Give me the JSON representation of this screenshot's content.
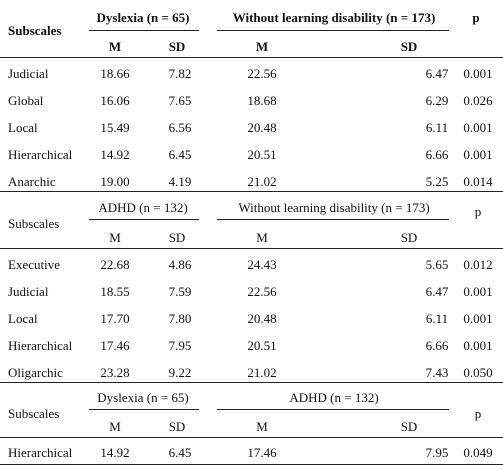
{
  "sections": [
    {
      "subscales_label": "Subscales",
      "group1": "Dyslexia (n = 65)",
      "group2": "Without learning disability (n = 173)",
      "p_label": "p",
      "m1": "M",
      "sd1": "SD",
      "m2": "M",
      "sd2": "SD",
      "rows": [
        {
          "label": "Judicial",
          "m1": "18.66",
          "sd1": "7.82",
          "m2": "22.56",
          "sd2": "6.47",
          "p": "0.001"
        },
        {
          "label": "Global",
          "m1": "16.06",
          "sd1": "7.65",
          "m2": "18.68",
          "sd2": "6.29",
          "p": "0.026"
        },
        {
          "label": "Local",
          "m1": "15.49",
          "sd1": "6.56",
          "m2": "20.48",
          "sd2": "6.11",
          "p": "0.001"
        },
        {
          "label": "Hierarchical",
          "m1": "14.92",
          "sd1": "6.45",
          "m2": "20.51",
          "sd2": "6.66",
          "p": "0.001"
        },
        {
          "label": "Anarchic",
          "m1": "19.00",
          "sd1": "4.19",
          "m2": "21.02",
          "sd2": "5.25",
          "p": "0.014"
        }
      ]
    },
    {
      "subscales_label": "Subscales",
      "group1": "ADHD (n = 132)",
      "group2": "Without learning disability (n = 173)",
      "p_label": "p",
      "m1": "M",
      "sd1": "SD",
      "m2": "M",
      "sd2": "SD",
      "rows": [
        {
          "label": "Executive",
          "m1": "22.68",
          "sd1": "4.86",
          "m2": "24.43",
          "sd2": "5.65",
          "p": "0.012"
        },
        {
          "label": "Judicial",
          "m1": "18.55",
          "sd1": "7.59",
          "m2": "22.56",
          "sd2": "6.47",
          "p": "0.001"
        },
        {
          "label": "Local",
          "m1": "17.70",
          "sd1": "7.80",
          "m2": "20.48",
          "sd2": "6.11",
          "p": "0.001"
        },
        {
          "label": "Hierarchical",
          "m1": "17.46",
          "sd1": "7.95",
          "m2": "20.51",
          "sd2": "6.66",
          "p": "0.001"
        },
        {
          "label": "Oligarchic",
          "m1": "23.28",
          "sd1": "9.22",
          "m2": "21.02",
          "sd2": "7.43",
          "p": "0.050"
        }
      ]
    },
    {
      "subscales_label": "Subscales",
      "group1": "Dyslexia (n = 65)",
      "group2": "ADHD (n = 132)",
      "p_label": "p",
      "m1": "M",
      "sd1": "SD",
      "m2": "M",
      "sd2": "SD",
      "rows": [
        {
          "label": "Hierarchical",
          "m1": "14.92",
          "sd1": "6.45",
          "m2": "17.46",
          "sd2": "7.95",
          "p": "0.049"
        }
      ]
    }
  ]
}
